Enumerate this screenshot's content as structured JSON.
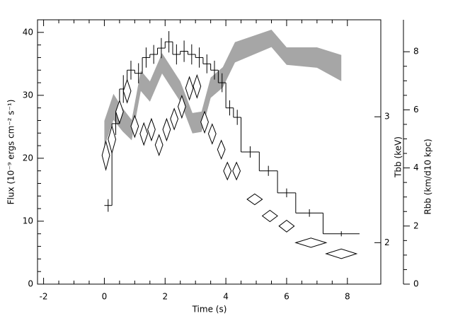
{
  "chart_data": {
    "type": "step",
    "xlabel": "Time (s)",
    "ylabel": "Flux (10⁻⁹ ergs cm⁻² s⁻¹)",
    "y2label": "Tbb (keV)",
    "y3label": "Rbb (km/d10 kpc)",
    "xlim": [
      -2.2,
      9.1
    ],
    "xticks": [
      -2,
      0,
      2,
      4,
      6,
      8
    ],
    "ylim": [
      0,
      42
    ],
    "yticks": [
      0,
      10,
      20,
      30,
      40
    ],
    "y2lim": [
      1.75,
      4.1
    ],
    "y2ticks": [
      2,
      3
    ],
    "y2scale": "log",
    "y3lim": [
      0,
      9.1
    ],
    "y3ticks": [
      0,
      2,
      4,
      6,
      8
    ],
    "flux": {
      "color": "#000000",
      "bins": [
        0,
        0.25,
        0.5,
        0.75,
        1,
        1.25,
        1.5,
        1.75,
        2,
        2.25,
        2.5,
        2.75,
        3,
        3.25,
        3.5,
        3.75,
        4,
        4.25,
        4.5,
        5.1,
        5.7,
        6.3,
        7.2,
        8.4
      ],
      "values": [
        12.5,
        25.5,
        31,
        34,
        33.5,
        36,
        36.5,
        37.5,
        38.5,
        36.5,
        37,
        36.5,
        36,
        35,
        34,
        32,
        28,
        26.5,
        21,
        18,
        14.5,
        11.3,
        8
      ],
      "errors": [
        1,
        1.8,
        2.2,
        1.5,
        1.6,
        1.6,
        1.5,
        1.6,
        1.7,
        1.6,
        1.7,
        1.6,
        1.6,
        1.5,
        1.5,
        1.5,
        1.2,
        1.2,
        0.9,
        0.8,
        0.7,
        0.6,
        0.4
      ]
    },
    "temperature": {
      "color": "#000000",
      "axis": "y2",
      "x": [
        0.05,
        0.25,
        0.5,
        0.75,
        1.0,
        1.3,
        1.55,
        1.8,
        2.05,
        2.3,
        2.55,
        2.8,
        3.05,
        3.3,
        3.55,
        3.85,
        4.05,
        4.35,
        4.95,
        5.45,
        6.0,
        6.8,
        7.8
      ],
      "x_errors": [
        0.125,
        0.125,
        0.125,
        0.125,
        0.125,
        0.125,
        0.125,
        0.125,
        0.125,
        0.125,
        0.125,
        0.125,
        0.125,
        0.125,
        0.125,
        0.125,
        0.125,
        0.125,
        0.25,
        0.25,
        0.25,
        0.5,
        0.5
      ],
      "values": [
        2.65,
        2.79,
        3.05,
        3.26,
        2.91,
        2.84,
        2.88,
        2.74,
        2.88,
        2.98,
        3.1,
        3.29,
        3.31,
        2.95,
        2.84,
        2.7,
        2.52,
        2.52,
        2.3,
        2.18,
        2.11,
        2.0,
        1.93
      ],
      "errors": [
        0.12,
        0.12,
        0.11,
        0.12,
        0.1,
        0.1,
        0.1,
        0.09,
        0.1,
        0.1,
        0.11,
        0.12,
        0.12,
        0.1,
        0.09,
        0.08,
        0.07,
        0.07,
        0.04,
        0.04,
        0.04,
        0.03,
        0.03
      ]
    },
    "radius": {
      "color": "#a6a6a6",
      "axis": "y3",
      "x": [
        0.0,
        0.3,
        0.6,
        0.9,
        1.2,
        1.5,
        1.9,
        2.5,
        2.9,
        3.2,
        3.5,
        3.9,
        4.3,
        5.5,
        6.0,
        7.0,
        7.8
      ],
      "values": [
        5.17,
        6.1,
        5.66,
        5.3,
        7.0,
        6.63,
        7.6,
        6.63,
        5.54,
        5.59,
        6.76,
        7.12,
        7.98,
        8.46,
        7.85,
        7.8,
        7.44
      ],
      "errors": [
        0.45,
        0.45,
        0.4,
        0.35,
        0.35,
        0.35,
        0.35,
        0.35,
        0.35,
        0.35,
        0.35,
        0.35,
        0.35,
        0.3,
        0.3,
        0.35,
        0.45
      ]
    }
  }
}
